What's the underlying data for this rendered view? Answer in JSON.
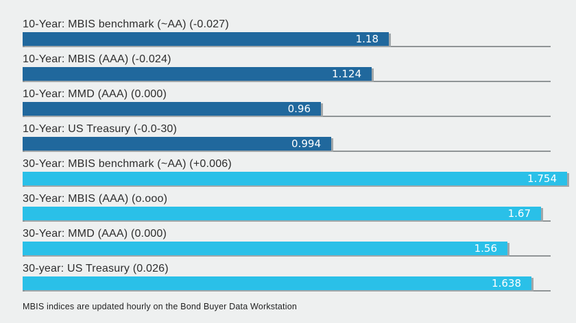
{
  "page": {
    "background_color": "#eef0f0",
    "baseline_color": "#8f9496"
  },
  "chart_data": {
    "type": "bar",
    "orientation": "horizontal",
    "title": "",
    "xlabel": "",
    "ylabel": "",
    "axis_range": [
      0,
      1.7
    ],
    "grid": "per-row baseline only, no axis labels",
    "legend": "none",
    "value_label_color": "#ffffff",
    "bars": [
      {
        "category": "10-Year: MBIS benchmark (~AA) (-0.027)",
        "value": 1.18,
        "display_value": "1.18",
        "color": "#20689d"
      },
      {
        "category": "10-Year: MBIS (AAA) (-0.024)",
        "value": 1.124,
        "display_value": "1.124",
        "color": "#20689d"
      },
      {
        "category": "10-Year: MMD (AAA) (0.000)",
        "value": 0.96,
        "display_value": "0.96",
        "color": "#20689d"
      },
      {
        "category": "10-Year: US Treasury (-0.0-30)",
        "value": 0.994,
        "display_value": "0.994",
        "color": "#20689d"
      },
      {
        "category": "30-Year: MBIS benchmark (~AA) (+0.006)",
        "value": 1.754,
        "display_value": "1.754",
        "color": "#2ac0e8"
      },
      {
        "category": "30-Year: MBIS (AAA) (o.ooo)",
        "value": 1.67,
        "display_value": "1.67",
        "color": "#2ac0e8"
      },
      {
        "category": "30-Year: MMD (AAA) (0.000)",
        "value": 1.56,
        "display_value": "1.56",
        "color": "#2ac0e8"
      },
      {
        "category": "30-year: US Treasury (0.026)",
        "value": 1.638,
        "display_value": "1.638",
        "color": "#2ac0e8"
      }
    ],
    "footnote": "MBIS indices are updated hourly on the Bond Buyer Data Workstation"
  }
}
